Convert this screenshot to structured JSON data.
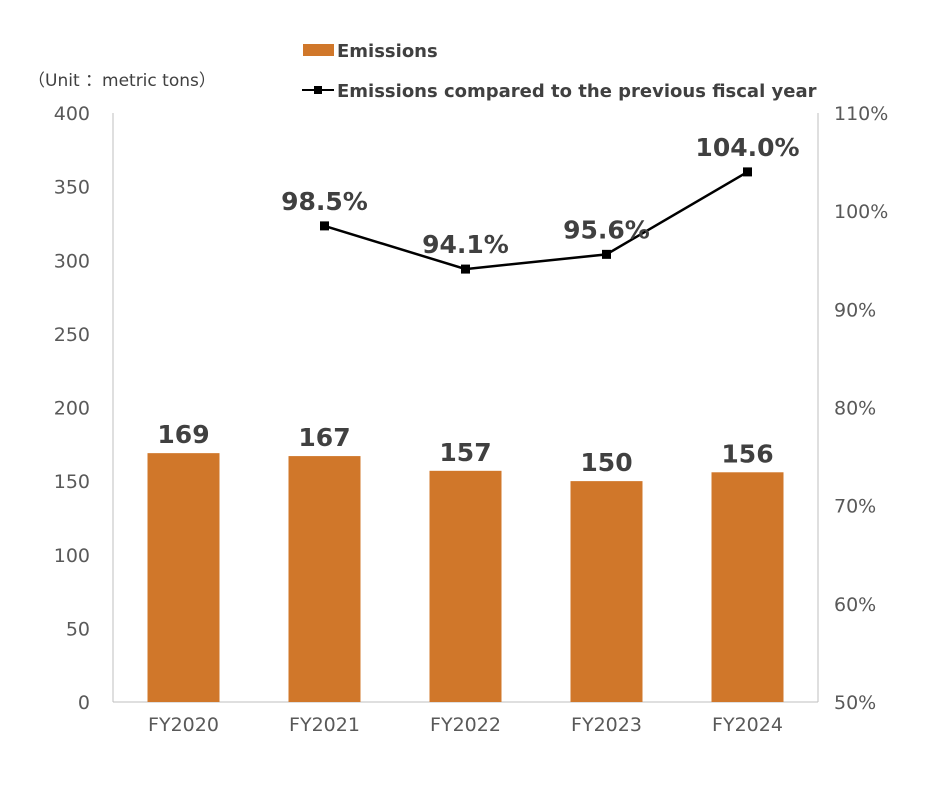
{
  "chart_data": {
    "type": "bar+line",
    "unit_label": "（Unit ：metric tons）",
    "categories": [
      "FY2020",
      "FY2021",
      "FY2022",
      "FY2023",
      "FY2024"
    ],
    "series": [
      {
        "name": "Emissions",
        "type": "bar",
        "axis": "left",
        "values": [
          169,
          167,
          157,
          150,
          156
        ],
        "labels": [
          "169",
          "167",
          "157",
          "150",
          "156"
        ],
        "color": "#D0772A"
      },
      {
        "name": "Emissions compared to the previous fiscal year",
        "type": "line",
        "axis": "right",
        "values": [
          null,
          98.5,
          94.1,
          95.6,
          104.0
        ],
        "labels": [
          "",
          "98.5%",
          "94.1%",
          "95.6%",
          "104.0%"
        ],
        "color": "#000000"
      }
    ],
    "left_axis": {
      "ylim": [
        0,
        400
      ],
      "ticks": [
        "0",
        "50",
        "100",
        "150",
        "200",
        "250",
        "300",
        "350",
        "400"
      ]
    },
    "right_axis": {
      "ylim": [
        50,
        110
      ],
      "ticks": [
        "50%",
        "60%",
        "70%",
        "80%",
        "90%",
        "100%",
        "110%"
      ]
    },
    "grid": false,
    "legend_position": "top"
  }
}
